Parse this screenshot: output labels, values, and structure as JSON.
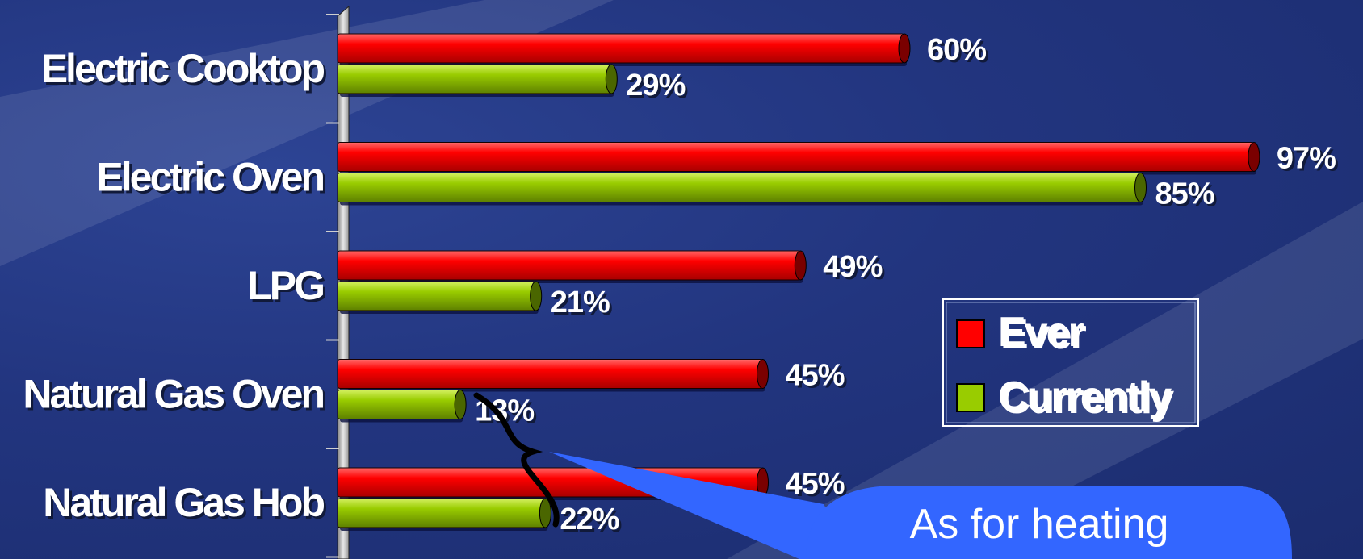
{
  "chart_data": {
    "type": "bar",
    "orientation": "horizontal",
    "categories": [
      "Electric Cooktop",
      "Electric Oven",
      "LPG",
      "Natural Gas Oven",
      "Natural Gas Hob"
    ],
    "series": [
      {
        "name": "Ever",
        "color": "#ff0000",
        "values": [
          60,
          97,
          49,
          45,
          45
        ],
        "labels": [
          "60%",
          "97%",
          "49%",
          "45%",
          "45%"
        ]
      },
      {
        "name": "Currently",
        "color": "#99cc00",
        "values": [
          29,
          85,
          21,
          13,
          22
        ],
        "labels": [
          "29%",
          "85%",
          "21%",
          "13%",
          "22%"
        ]
      }
    ],
    "xlim": [
      0,
      100
    ],
    "grid": false,
    "legend_position": "right"
  },
  "callout": {
    "text": "As for heating",
    "color": "#3366ff"
  }
}
